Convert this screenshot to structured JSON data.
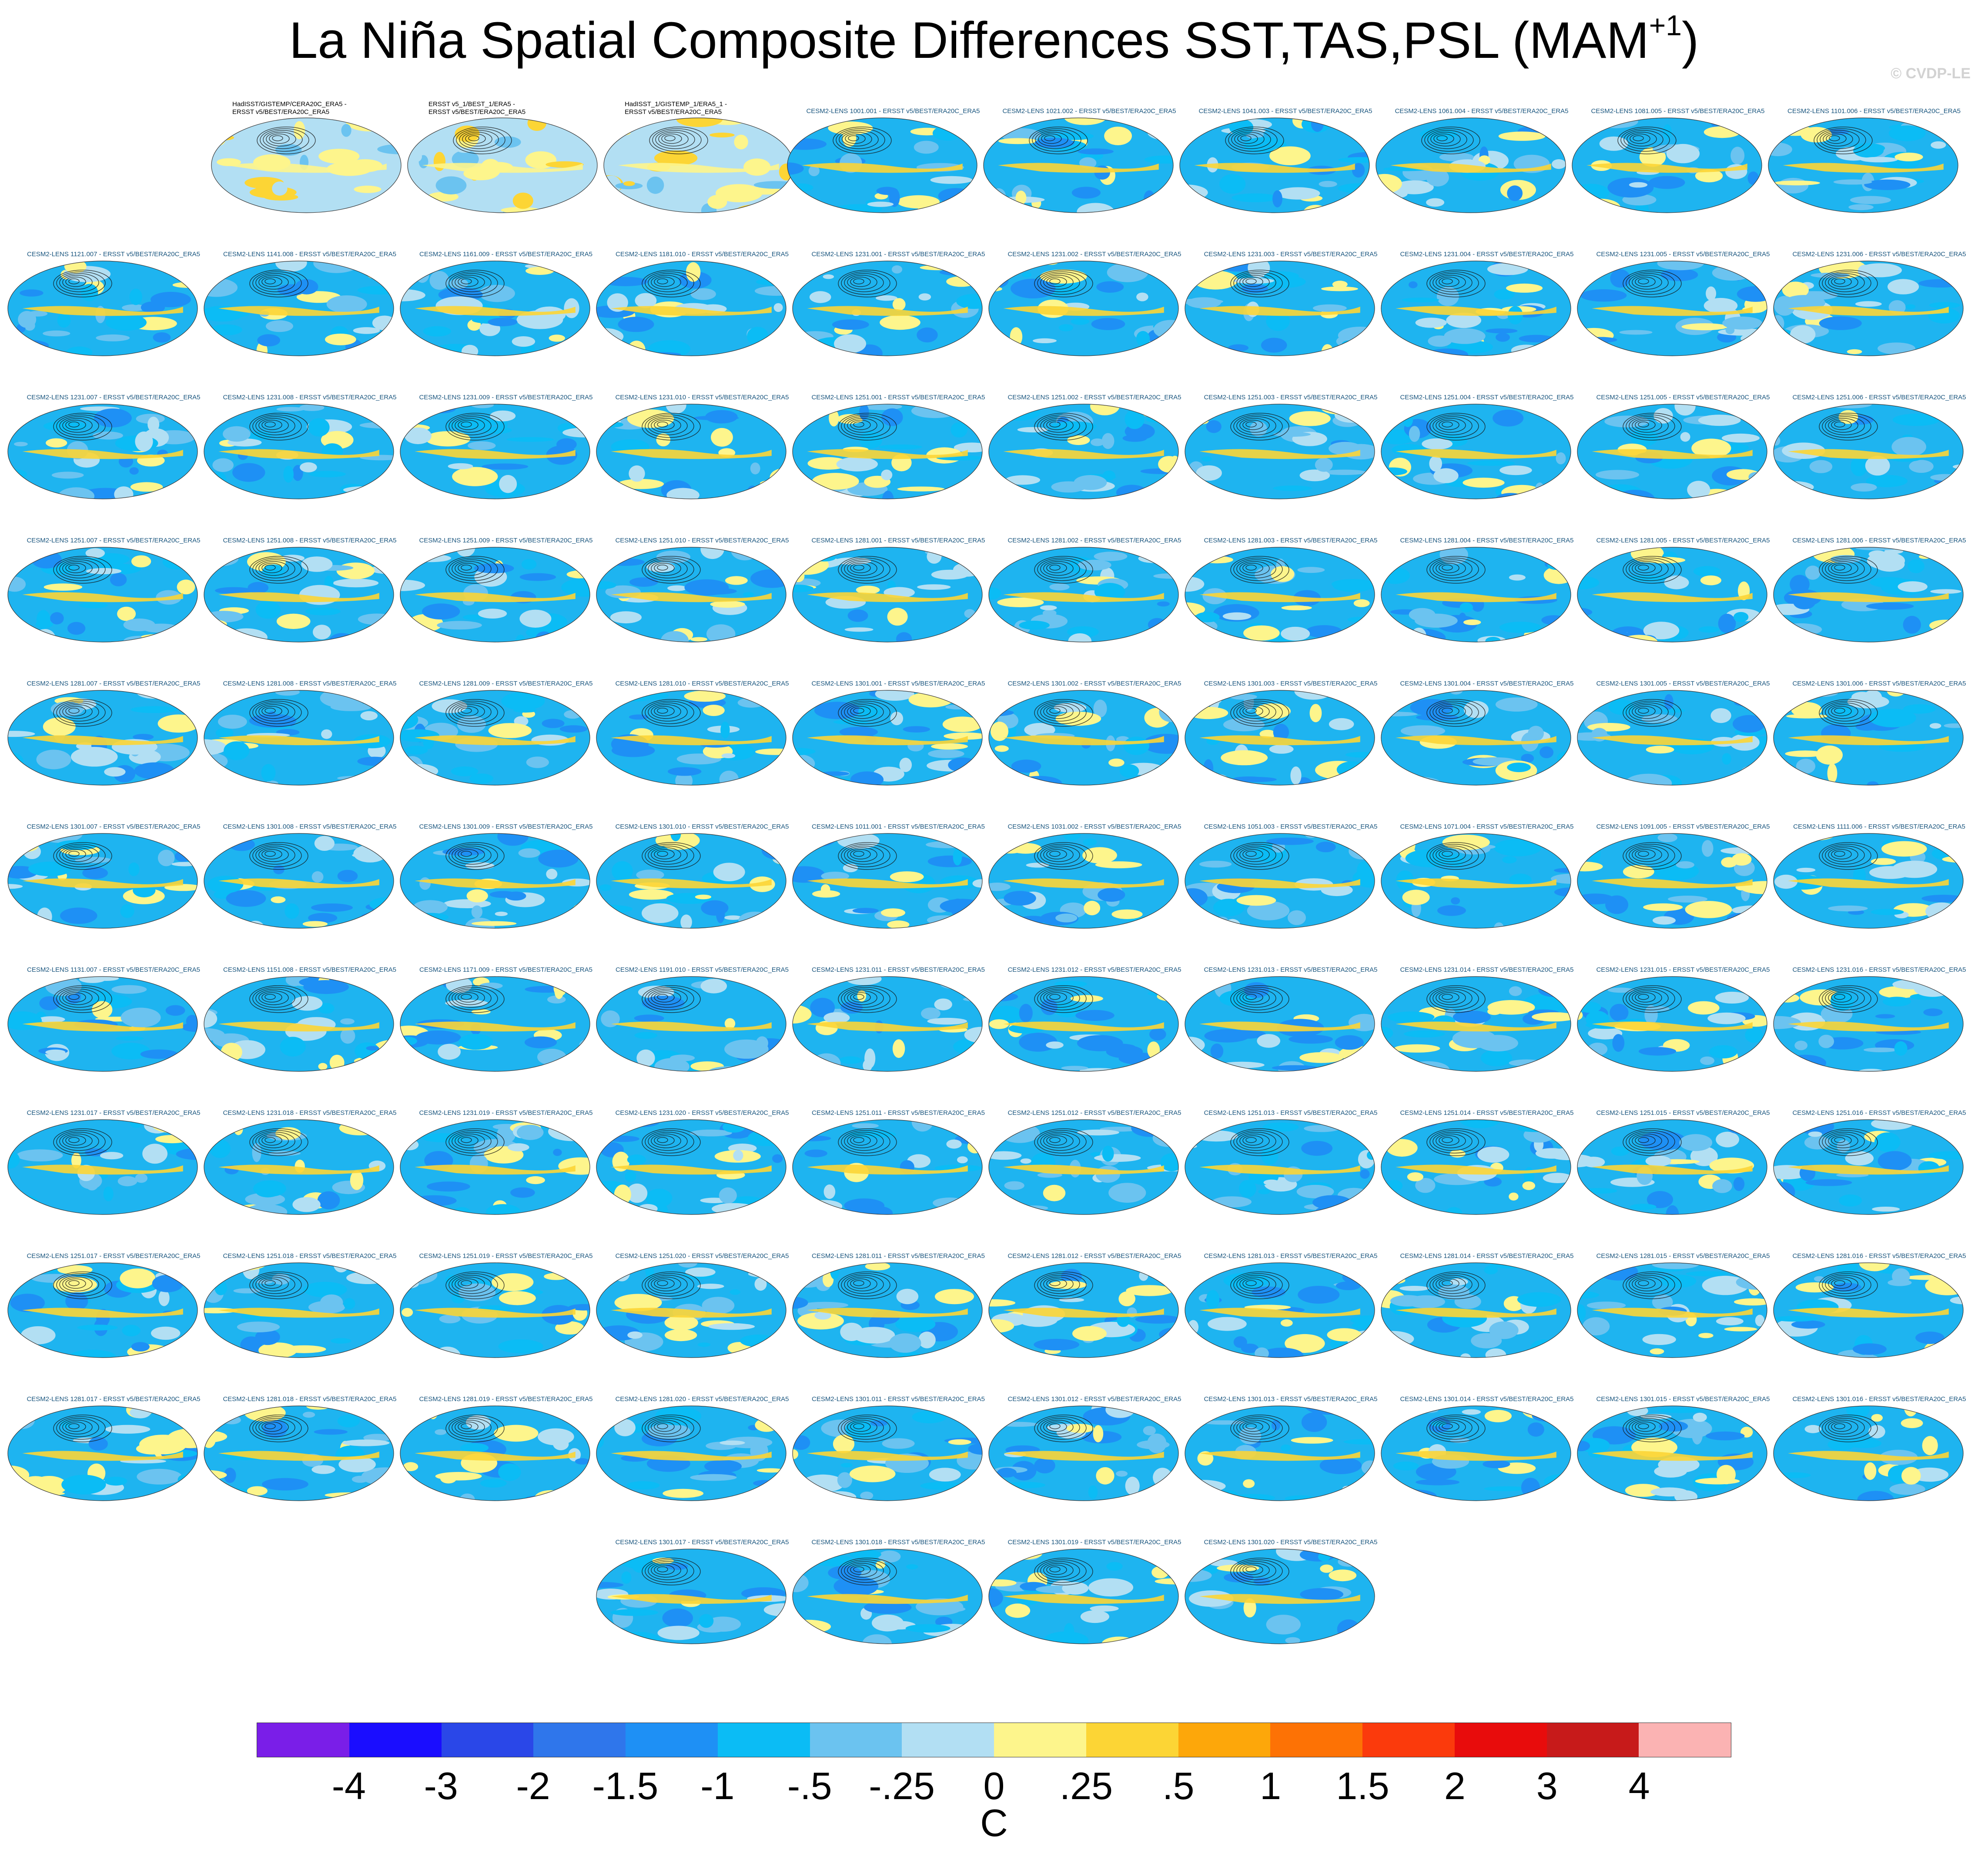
{
  "title": {
    "text": "La Niña Spatial Composite Differences SST,TAS,PSL (MAM",
    "superscript": "+1",
    "suffix": ")"
  },
  "watermark": "© CVDP-LE",
  "chart_data": {
    "type": "heatmap",
    "description_units": "C",
    "colorbar": {
      "colors": [
        "#7a1ee8",
        "#1a0dff",
        "#2a47e8",
        "#2f76eb",
        "#1e90f5",
        "#0bbcf5",
        "#6bc3f0",
        "#b2dff3",
        "#fdf58c",
        "#fcd535",
        "#fda70a",
        "#fd7205",
        "#fb3a0c",
        "#e80c0c",
        "#c71a1a",
        "#fbb3b3"
      ],
      "tick_labels": [
        "-4",
        "-3",
        "-2",
        "-1.5",
        "-1",
        "-.5",
        "-.25",
        "0",
        ".25",
        ".5",
        "1",
        "1.5",
        "2",
        "3",
        "4"
      ],
      "units": "C"
    },
    "observation_panels": [
      "HadISST/GISTEMP/CERA20C_ERA5 -\nERSST v5/BEST/ERA20C_ERA5",
      "ERSST v5_1/BEST_1/ERA5 -\nERSST v5/BEST/ERA20C_ERA5",
      "HadISST_1/GISTEMP_1/ERA5_1 -\nERSST v5/BEST/ERA20C_ERA5"
    ],
    "model_panels": [
      "CESM2-LENS 1001.001 - ERSST v5/BEST/ERA20C_ERA5",
      "CESM2-LENS 1021.002 - ERSST v5/BEST/ERA20C_ERA5",
      "CESM2-LENS 1041.003 - ERSST v5/BEST/ERA20C_ERA5",
      "CESM2-LENS 1061.004 - ERSST v5/BEST/ERA20C_ERA5",
      "CESM2-LENS 1081.005 - ERSST v5/BEST/ERA20C_ERA5",
      "CESM2-LENS 1101.006 - ERSST v5/BEST/ERA20C_ERA5",
      "CESM2-LENS 1121.007 - ERSST v5/BEST/ERA20C_ERA5",
      "CESM2-LENS 1141.008 - ERSST v5/BEST/ERA20C_ERA5",
      "CESM2-LENS 1161.009 - ERSST v5/BEST/ERA20C_ERA5",
      "CESM2-LENS 1181.010 - ERSST v5/BEST/ERA20C_ERA5",
      "CESM2-LENS 1231.001 - ERSST v5/BEST/ERA20C_ERA5",
      "CESM2-LENS 1231.002 - ERSST v5/BEST/ERA20C_ERA5",
      "CESM2-LENS 1231.003 - ERSST v5/BEST/ERA20C_ERA5",
      "CESM2-LENS 1231.004 - ERSST v5/BEST/ERA20C_ERA5",
      "CESM2-LENS 1231.005 - ERSST v5/BEST/ERA20C_ERA5",
      "CESM2-LENS 1231.006 - ERSST v5/BEST/ERA20C_ERA5",
      "CESM2-LENS 1231.007 - ERSST v5/BEST/ERA20C_ERA5",
      "CESM2-LENS 1231.008 - ERSST v5/BEST/ERA20C_ERA5",
      "CESM2-LENS 1231.009 - ERSST v5/BEST/ERA20C_ERA5",
      "CESM2-LENS 1231.010 - ERSST v5/BEST/ERA20C_ERA5",
      "CESM2-LENS 1251.001 - ERSST v5/BEST/ERA20C_ERA5",
      "CESM2-LENS 1251.002 - ERSST v5/BEST/ERA20C_ERA5",
      "CESM2-LENS 1251.003 - ERSST v5/BEST/ERA20C_ERA5",
      "CESM2-LENS 1251.004 - ERSST v5/BEST/ERA20C_ERA5",
      "CESM2-LENS 1251.005 - ERSST v5/BEST/ERA20C_ERA5",
      "CESM2-LENS 1251.006 - ERSST v5/BEST/ERA20C_ERA5",
      "CESM2-LENS 1251.007 - ERSST v5/BEST/ERA20C_ERA5",
      "CESM2-LENS 1251.008 - ERSST v5/BEST/ERA20C_ERA5",
      "CESM2-LENS 1251.009 - ERSST v5/BEST/ERA20C_ERA5",
      "CESM2-LENS 1251.010 - ERSST v5/BEST/ERA20C_ERA5",
      "CESM2-LENS 1281.001 - ERSST v5/BEST/ERA20C_ERA5",
      "CESM2-LENS 1281.002 - ERSST v5/BEST/ERA20C_ERA5",
      "CESM2-LENS 1281.003 - ERSST v5/BEST/ERA20C_ERA5",
      "CESM2-LENS 1281.004 - ERSST v5/BEST/ERA20C_ERA5",
      "CESM2-LENS 1281.005 - ERSST v5/BEST/ERA20C_ERA5",
      "CESM2-LENS 1281.006 - ERSST v5/BEST/ERA20C_ERA5",
      "CESM2-LENS 1281.007 - ERSST v5/BEST/ERA20C_ERA5",
      "CESM2-LENS 1281.008 - ERSST v5/BEST/ERA20C_ERA5",
      "CESM2-LENS 1281.009 - ERSST v5/BEST/ERA20C_ERA5",
      "CESM2-LENS 1281.010 - ERSST v5/BEST/ERA20C_ERA5",
      "CESM2-LENS 1301.001 - ERSST v5/BEST/ERA20C_ERA5",
      "CESM2-LENS 1301.002 - ERSST v5/BEST/ERA20C_ERA5",
      "CESM2-LENS 1301.003 - ERSST v5/BEST/ERA20C_ERA5",
      "CESM2-LENS 1301.004 - ERSST v5/BEST/ERA20C_ERA5",
      "CESM2-LENS 1301.005 - ERSST v5/BEST/ERA20C_ERA5",
      "CESM2-LENS 1301.006 - ERSST v5/BEST/ERA20C_ERA5",
      "CESM2-LENS 1301.007 - ERSST v5/BEST/ERA20C_ERA5",
      "CESM2-LENS 1301.008 - ERSST v5/BEST/ERA20C_ERA5",
      "CESM2-LENS 1301.009 - ERSST v5/BEST/ERA20C_ERA5",
      "CESM2-LENS 1301.010 - ERSST v5/BEST/ERA20C_ERA5",
      "CESM2-LENS 1011.001 - ERSST v5/BEST/ERA20C_ERA5",
      "CESM2-LENS 1031.002 - ERSST v5/BEST/ERA20C_ERA5",
      "CESM2-LENS 1051.003 - ERSST v5/BEST/ERA20C_ERA5",
      "CESM2-LENS 1071.004 - ERSST v5/BEST/ERA20C_ERA5",
      "CESM2-LENS 1091.005 - ERSST v5/BEST/ERA20C_ERA5",
      "CESM2-LENS 1111.006 - ERSST v5/BEST/ERA20C_ERA5",
      "CESM2-LENS 1131.007 - ERSST v5/BEST/ERA20C_ERA5",
      "CESM2-LENS 1151.008 - ERSST v5/BEST/ERA20C_ERA5",
      "CESM2-LENS 1171.009 - ERSST v5/BEST/ERA20C_ERA5",
      "CESM2-LENS 1191.010 - ERSST v5/BEST/ERA20C_ERA5",
      "CESM2-LENS 1231.011 - ERSST v5/BEST/ERA20C_ERA5",
      "CESM2-LENS 1231.012 - ERSST v5/BEST/ERA20C_ERA5",
      "CESM2-LENS 1231.013 - ERSST v5/BEST/ERA20C_ERA5",
      "CESM2-LENS 1231.014 - ERSST v5/BEST/ERA20C_ERA5",
      "CESM2-LENS 1231.015 - ERSST v5/BEST/ERA20C_ERA5",
      "CESM2-LENS 1231.016 - ERSST v5/BEST/ERA20C_ERA5",
      "CESM2-LENS 1231.017 - ERSST v5/BEST/ERA20C_ERA5",
      "CESM2-LENS 1231.018 - ERSST v5/BEST/ERA20C_ERA5",
      "CESM2-LENS 1231.019 - ERSST v5/BEST/ERA20C_ERA5",
      "CESM2-LENS 1231.020 - ERSST v5/BEST/ERA20C_ERA5",
      "CESM2-LENS 1251.011 - ERSST v5/BEST/ERA20C_ERA5",
      "CESM2-LENS 1251.012 - ERSST v5/BEST/ERA20C_ERA5",
      "CESM2-LENS 1251.013 - ERSST v5/BEST/ERA20C_ERA5",
      "CESM2-LENS 1251.014 - ERSST v5/BEST/ERA20C_ERA5",
      "CESM2-LENS 1251.015 - ERSST v5/BEST/ERA20C_ERA5",
      "CESM2-LENS 1251.016 - ERSST v5/BEST/ERA20C_ERA5",
      "CESM2-LENS 1251.017 - ERSST v5/BEST/ERA20C_ERA5",
      "CESM2-LENS 1251.018 - ERSST v5/BEST/ERA20C_ERA5",
      "CESM2-LENS 1251.019 - ERSST v5/BEST/ERA20C_ERA5",
      "CESM2-LENS 1251.020 - ERSST v5/BEST/ERA20C_ERA5",
      "CESM2-LENS 1281.011 - ERSST v5/BEST/ERA20C_ERA5",
      "CESM2-LENS 1281.012 - ERSST v5/BEST/ERA20C_ERA5",
      "CESM2-LENS 1281.013 - ERSST v5/BEST/ERA20C_ERA5",
      "CESM2-LENS 1281.014 - ERSST v5/BEST/ERA20C_ERA5",
      "CESM2-LENS 1281.015 - ERSST v5/BEST/ERA20C_ERA5",
      "CESM2-LENS 1281.016 - ERSST v5/BEST/ERA20C_ERA5",
      "CESM2-LENS 1281.017 - ERSST v5/BEST/ERA20C_ERA5",
      "CESM2-LENS 1281.018 - ERSST v5/BEST/ERA20C_ERA5",
      "CESM2-LENS 1281.019 - ERSST v5/BEST/ERA20C_ERA5",
      "CESM2-LENS 1281.020 - ERSST v5/BEST/ERA20C_ERA5",
      "CESM2-LENS 1301.011 - ERSST v5/BEST/ERA20C_ERA5",
      "CESM2-LENS 1301.012 - ERSST v5/BEST/ERA20C_ERA5",
      "CESM2-LENS 1301.013 - ERSST v5/BEST/ERA20C_ERA5",
      "CESM2-LENS 1301.014 - ERSST v5/BEST/ERA20C_ERA5",
      "CESM2-LENS 1301.015 - ERSST v5/BEST/ERA20C_ERA5",
      "CESM2-LENS 1301.016 - ERSST v5/BEST/ERA20C_ERA5",
      "CESM2-LENS 1301.017 - ERSST v5/BEST/ERA20C_ERA5",
      "CESM2-LENS 1301.018 - ERSST v5/BEST/ERA20C_ERA5",
      "CESM2-LENS 1301.019 - ERSST v5/BEST/ERA20C_ERA5",
      "CESM2-LENS 1301.020 - ERSST v5/BEST/ERA20C_ERA5"
    ]
  }
}
